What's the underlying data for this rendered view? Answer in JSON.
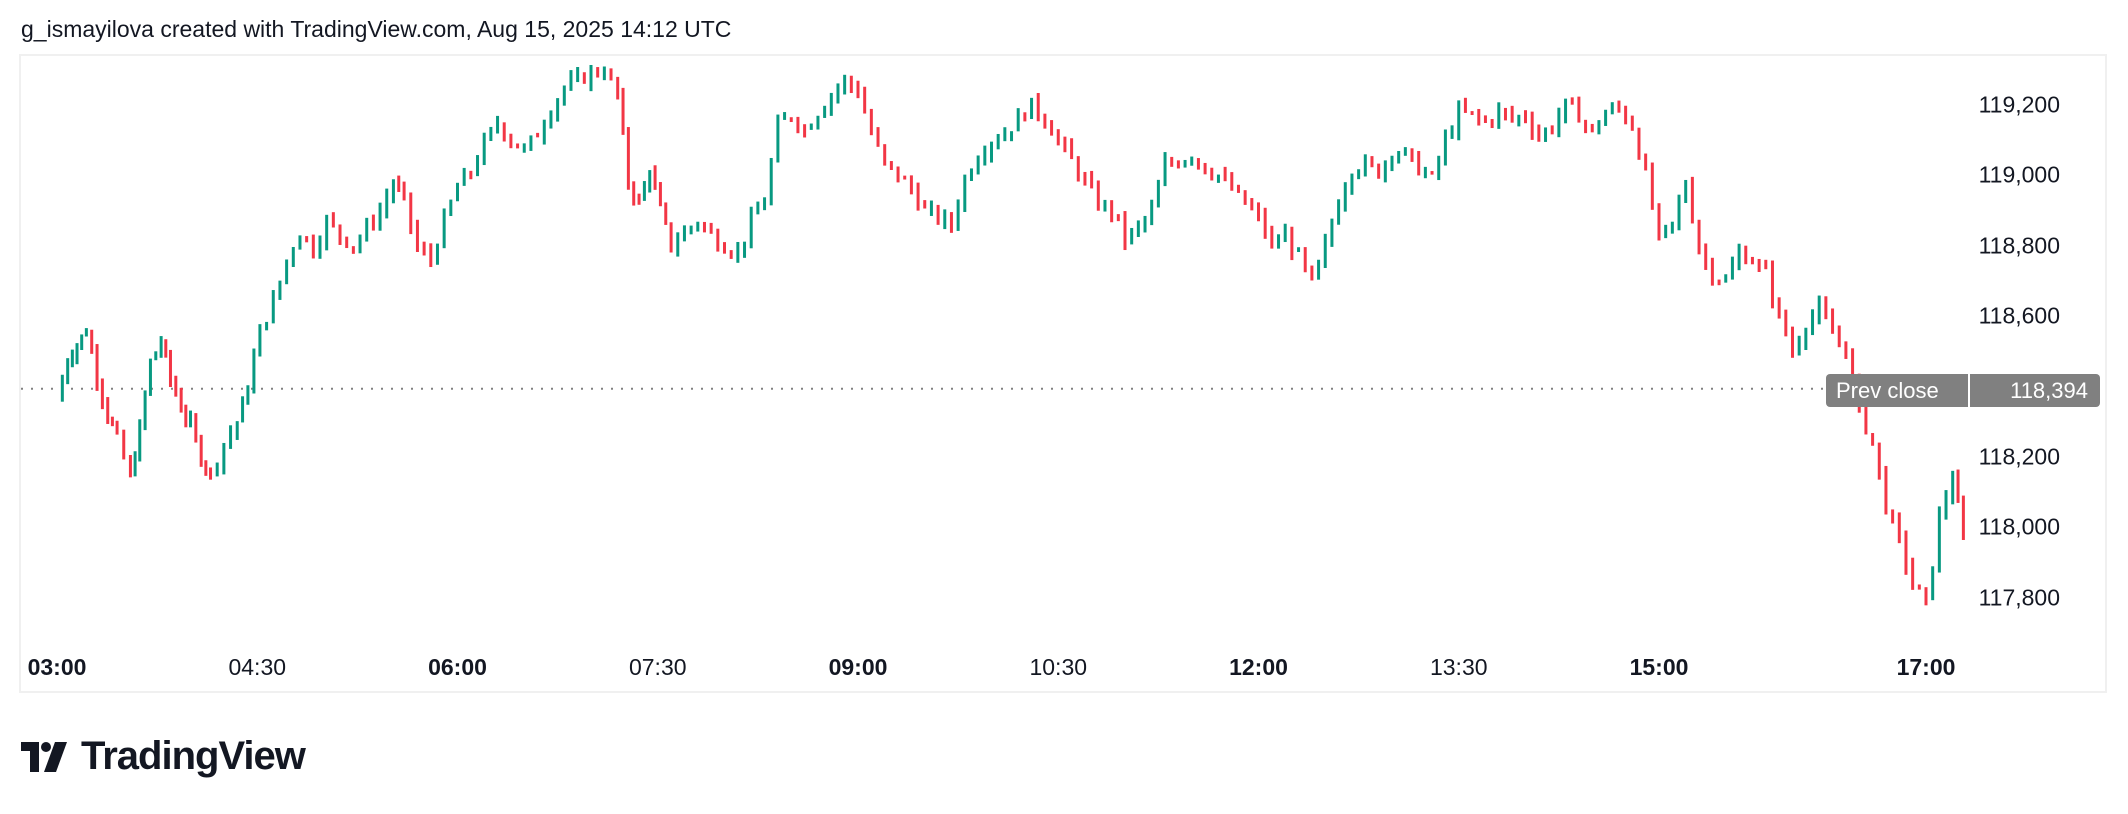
{
  "header": {
    "caption": "g_ismayilova created with TradingView.com, Aug 15, 2025 14:12 UTC"
  },
  "brand": {
    "logo_icon": "tradingview-logo-icon",
    "name": "TradingView"
  },
  "colors": {
    "up": "#089981",
    "down": "#F23645",
    "prev_close_line": "#808080",
    "prev_close_badge": "#808080",
    "frame_border": "#f0f0f0",
    "text": "#131722"
  },
  "prev_close": {
    "label": "Prev close",
    "value": "118,394",
    "price": 118394
  },
  "chart_data": {
    "type": "candlestick",
    "title": "",
    "xlabel": "",
    "ylabel": "",
    "ylim": [
      117700,
      119330
    ],
    "grid": false,
    "legend": "none",
    "y_ticks": [
      "119,200",
      "119,000",
      "118,800",
      "118,600",
      "118,200",
      "118,000",
      "117,800"
    ],
    "y_tick_values": [
      119200,
      119000,
      118800,
      118600,
      118200,
      118000,
      117800
    ],
    "x_ticks": [
      {
        "label": "03:00",
        "hour": 0,
        "major": true
      },
      {
        "label": "04:30",
        "hour": 1.5,
        "major": false
      },
      {
        "label": "06:00",
        "hour": 3,
        "major": true
      },
      {
        "label": "07:30",
        "hour": 4.5,
        "major": false
      },
      {
        "label": "09:00",
        "hour": 6,
        "major": true
      },
      {
        "label": "10:30",
        "hour": 7.5,
        "major": false
      },
      {
        "label": "12:00",
        "hour": 9,
        "major": true
      },
      {
        "label": "13:30",
        "hour": 10.5,
        "major": false
      },
      {
        "label": "15:00",
        "hour": 12,
        "major": true
      },
      {
        "label": "17:00",
        "hour": 14,
        "major": true
      }
    ],
    "annotations": [
      {
        "type": "hline",
        "label": "Prev close",
        "value": 118394,
        "style": "dotted"
      }
    ],
    "close_path": [
      [
        0.0,
        118360
      ],
      [
        0.08,
        118480
      ],
      [
        0.15,
        118520
      ],
      [
        0.22,
        118560
      ],
      [
        0.3,
        118430
      ],
      [
        0.38,
        118320
      ],
      [
        0.45,
        118250
      ],
      [
        0.55,
        118140
      ],
      [
        0.62,
        118280
      ],
      [
        0.7,
        118470
      ],
      [
        0.78,
        118530
      ],
      [
        0.85,
        118420
      ],
      [
        0.93,
        118340
      ],
      [
        1.0,
        118290
      ],
      [
        1.08,
        118200
      ],
      [
        1.15,
        118150
      ],
      [
        1.25,
        118240
      ],
      [
        1.35,
        118300
      ],
      [
        1.43,
        118400
      ],
      [
        1.52,
        118560
      ],
      [
        1.62,
        118640
      ],
      [
        1.72,
        118760
      ],
      [
        1.82,
        118840
      ],
      [
        1.92,
        118790
      ],
      [
        2.02,
        118870
      ],
      [
        2.12,
        118830
      ],
      [
        2.22,
        118800
      ],
      [
        2.32,
        118850
      ],
      [
        2.42,
        118900
      ],
      [
        2.52,
        118980
      ],
      [
        2.6,
        118930
      ],
      [
        2.7,
        118790
      ],
      [
        2.8,
        118760
      ],
      [
        2.9,
        118870
      ],
      [
        3.0,
        118970
      ],
      [
        3.1,
        119010
      ],
      [
        3.2,
        119090
      ],
      [
        3.3,
        119150
      ],
      [
        3.4,
        119100
      ],
      [
        3.5,
        119070
      ],
      [
        3.6,
        119120
      ],
      [
        3.7,
        119190
      ],
      [
        3.8,
        119250
      ],
      [
        3.9,
        119270
      ],
      [
        4.0,
        119290
      ],
      [
        4.1,
        119300
      ],
      [
        4.2,
        119230
      ],
      [
        4.28,
        118980
      ],
      [
        4.36,
        118920
      ],
      [
        4.44,
        119020
      ],
      [
        4.52,
        118900
      ],
      [
        4.6,
        118800
      ],
      [
        4.7,
        118840
      ],
      [
        4.8,
        118870
      ],
      [
        4.9,
        118830
      ],
      [
        5.0,
        118800
      ],
      [
        5.1,
        118780
      ],
      [
        5.2,
        118870
      ],
      [
        5.3,
        118930
      ],
      [
        5.4,
        119140
      ],
      [
        5.5,
        119170
      ],
      [
        5.6,
        119130
      ],
      [
        5.7,
        119180
      ],
      [
        5.8,
        119230
      ],
      [
        5.9,
        119270
      ],
      [
        6.0,
        119240
      ],
      [
        6.1,
        119120
      ],
      [
        6.2,
        119030
      ],
      [
        6.3,
        119000
      ],
      [
        6.4,
        118960
      ],
      [
        6.5,
        118900
      ],
      [
        6.6,
        118880
      ],
      [
        6.7,
        118860
      ],
      [
        6.8,
        118990
      ],
      [
        6.9,
        119060
      ],
      [
        7.0,
        119100
      ],
      [
        7.1,
        119120
      ],
      [
        7.2,
        119160
      ],
      [
        7.3,
        119200
      ],
      [
        7.4,
        119160
      ],
      [
        7.5,
        119100
      ],
      [
        7.6,
        119040
      ],
      [
        7.7,
        118980
      ],
      [
        7.8,
        118920
      ],
      [
        7.9,
        118900
      ],
      [
        8.0,
        118820
      ],
      [
        8.1,
        118850
      ],
      [
        8.2,
        118900
      ],
      [
        8.3,
        119030
      ],
      [
        8.4,
        119040
      ],
      [
        8.5,
        119060
      ],
      [
        8.6,
        119020
      ],
      [
        8.7,
        119000
      ],
      [
        8.8,
        118960
      ],
      [
        8.9,
        118920
      ],
      [
        9.0,
        118880
      ],
      [
        9.1,
        118800
      ],
      [
        9.2,
        118830
      ],
      [
        9.3,
        118770
      ],
      [
        9.4,
        118690
      ],
      [
        9.5,
        118800
      ],
      [
        9.6,
        118930
      ],
      [
        9.7,
        119020
      ],
      [
        9.8,
        119030
      ],
      [
        9.9,
        119010
      ],
      [
        10.0,
        119070
      ],
      [
        10.1,
        119060
      ],
      [
        10.2,
        119020
      ],
      [
        10.3,
        118990
      ],
      [
        10.4,
        119100
      ],
      [
        10.5,
        119180
      ],
      [
        10.6,
        119170
      ],
      [
        10.7,
        119150
      ],
      [
        10.8,
        119180
      ],
      [
        10.9,
        119160
      ],
      [
        11.0,
        119170
      ],
      [
        11.1,
        119110
      ],
      [
        11.2,
        119140
      ],
      [
        11.3,
        119200
      ],
      [
        11.4,
        119170
      ],
      [
        11.5,
        119120
      ],
      [
        11.6,
        119180
      ],
      [
        11.7,
        119190
      ],
      [
        11.8,
        119140
      ],
      [
        11.9,
        119000
      ],
      [
        12.0,
        118820
      ],
      [
        12.1,
        118860
      ],
      [
        12.2,
        118980
      ],
      [
        12.3,
        118790
      ],
      [
        12.4,
        118720
      ],
      [
        12.5,
        118700
      ],
      [
        12.6,
        118780
      ],
      [
        12.7,
        118760
      ],
      [
        12.8,
        118720
      ],
      [
        12.9,
        118600
      ],
      [
        13.0,
        118500
      ],
      [
        13.1,
        118580
      ],
      [
        13.2,
        118620
      ],
      [
        13.3,
        118550
      ],
      [
        13.4,
        118510
      ],
      [
        13.5,
        118330
      ],
      [
        13.6,
        118240
      ],
      [
        13.7,
        118060
      ],
      [
        13.8,
        117960
      ],
      [
        13.9,
        117840
      ],
      [
        14.0,
        117780
      ],
      [
        14.1,
        118030
      ],
      [
        14.2,
        118150
      ],
      [
        14.28,
        117960
      ]
    ]
  }
}
